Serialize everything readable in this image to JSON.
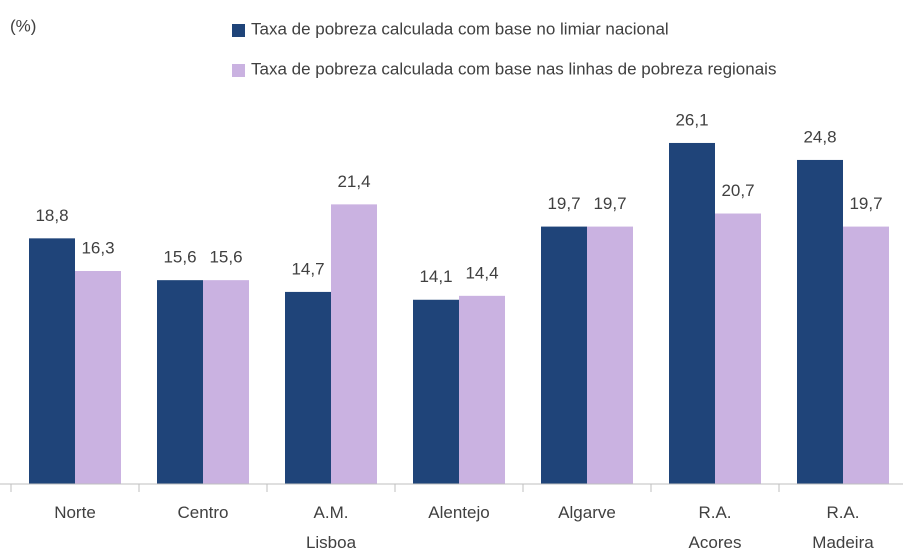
{
  "chart_data": {
    "type": "bar",
    "unit_label": "(%)",
    "categories": [
      "Norte",
      "Centro",
      "A.M. Lisboa",
      "Alentejo",
      "Algarve",
      "R.A. Acores",
      "R.A. Madeira"
    ],
    "series": [
      {
        "name": "Taxa de pobreza calculada com base no limiar nacional",
        "color": "#1f4479",
        "values": [
          18.8,
          15.6,
          14.7,
          14.1,
          19.7,
          26.1,
          24.8
        ],
        "value_labels": [
          "18,8",
          "15,6",
          "14,7",
          "14,1",
          "19,7",
          "26,1",
          "24,8"
        ]
      },
      {
        "name": "Taxa de pobreza calculada com base nas linhas de pobreza regionais",
        "color": "#cab2e1",
        "values": [
          16.3,
          15.6,
          21.4,
          14.4,
          19.7,
          20.7,
          19.7
        ],
        "value_labels": [
          "16,3",
          "15,6",
          "21,4",
          "14,4",
          "19,7",
          "20,7",
          "19,7"
        ]
      }
    ],
    "ylim": [
      0,
      30
    ]
  }
}
